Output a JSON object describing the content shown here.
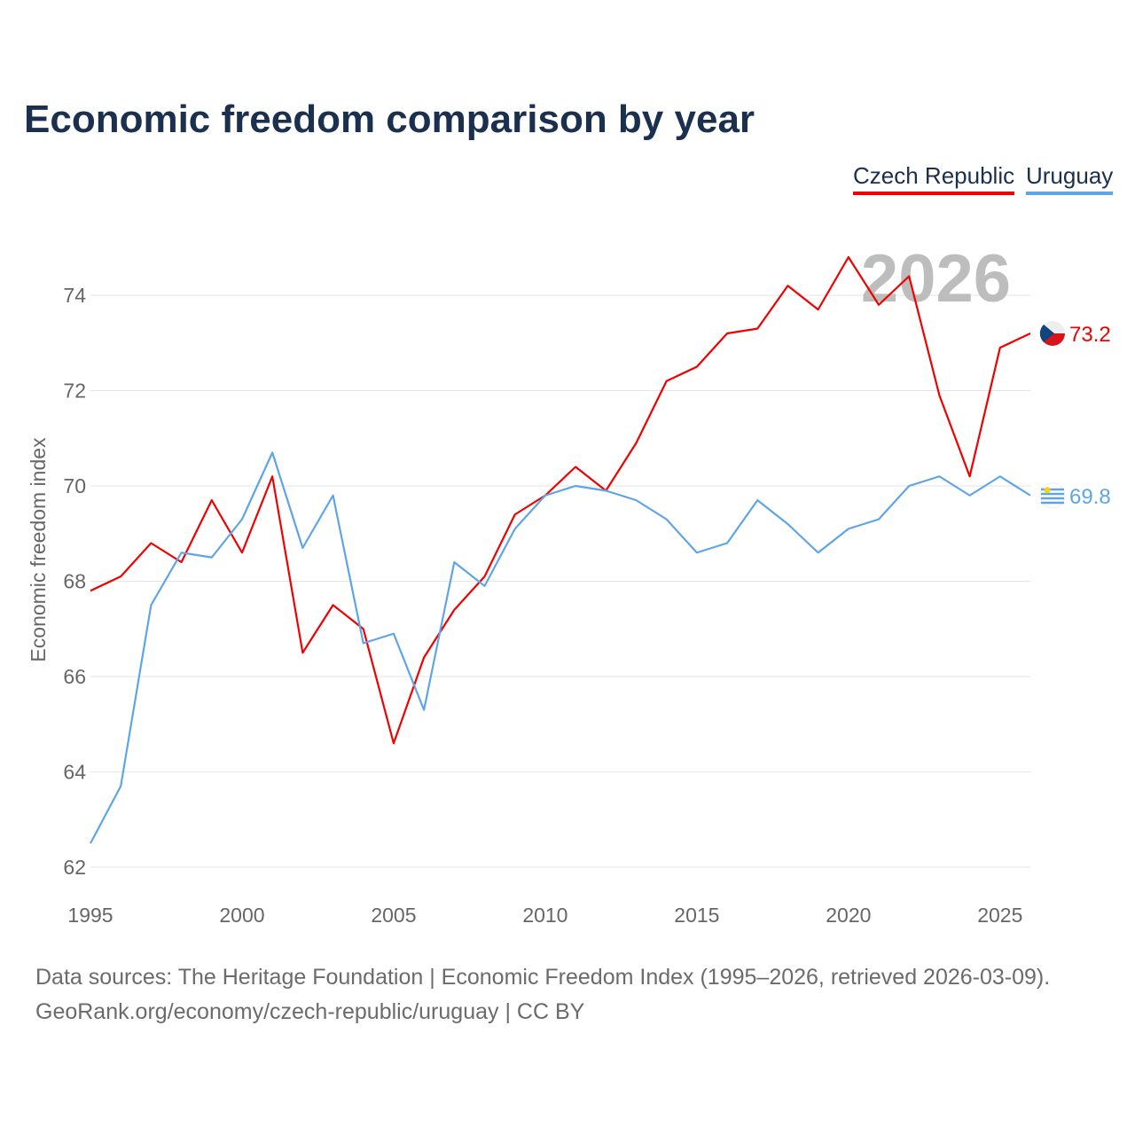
{
  "chart_data": {
    "type": "line",
    "title": "Economic freedom comparison by year",
    "xlabel": "",
    "ylabel": "Economic freedom index",
    "xlim": [
      1995,
      2026
    ],
    "ylim": [
      62,
      75
    ],
    "yticks": [
      62,
      64,
      66,
      68,
      70,
      72,
      74
    ],
    "xticks": [
      1995,
      2000,
      2005,
      2010,
      2015,
      2020,
      2025
    ],
    "grid": true,
    "legend_position": "top-right",
    "annotation": "2026",
    "x": [
      1995,
      1996,
      1997,
      1998,
      1999,
      2000,
      2001,
      2002,
      2003,
      2004,
      2005,
      2006,
      2007,
      2008,
      2009,
      2010,
      2011,
      2012,
      2013,
      2014,
      2015,
      2016,
      2017,
      2018,
      2019,
      2020,
      2021,
      2022,
      2023,
      2024,
      2025,
      2026
    ],
    "series": [
      {
        "name": "Czech Republic",
        "color": "#f00000",
        "end_label": "73.2",
        "values": [
          67.8,
          68.1,
          68.8,
          68.4,
          69.7,
          68.6,
          70.2,
          66.5,
          67.5,
          67.0,
          64.6,
          66.4,
          67.4,
          68.1,
          69.4,
          69.8,
          70.4,
          69.9,
          70.9,
          72.2,
          72.5,
          73.2,
          73.3,
          74.2,
          73.7,
          74.8,
          73.8,
          74.4,
          71.9,
          70.2,
          72.9,
          73.2
        ]
      },
      {
        "name": "Uruguay",
        "color": "#5ea5e8",
        "end_label": "69.8",
        "values": [
          62.5,
          63.7,
          67.5,
          68.6,
          68.5,
          69.3,
          70.7,
          68.7,
          69.8,
          66.7,
          66.9,
          65.3,
          68.4,
          67.9,
          69.1,
          69.8,
          70.0,
          69.9,
          69.7,
          69.3,
          68.6,
          68.8,
          69.7,
          69.2,
          68.6,
          69.1,
          69.3,
          70.0,
          70.2,
          69.8,
          70.2,
          69.8
        ]
      }
    ]
  },
  "footer": {
    "line1": "Data sources: The Heritage Foundation | Economic Freedom Index (1995–2026, retrieved 2026-03-09).",
    "line2": "GeoRank.org/economy/czech-republic/uruguay | CC BY"
  }
}
